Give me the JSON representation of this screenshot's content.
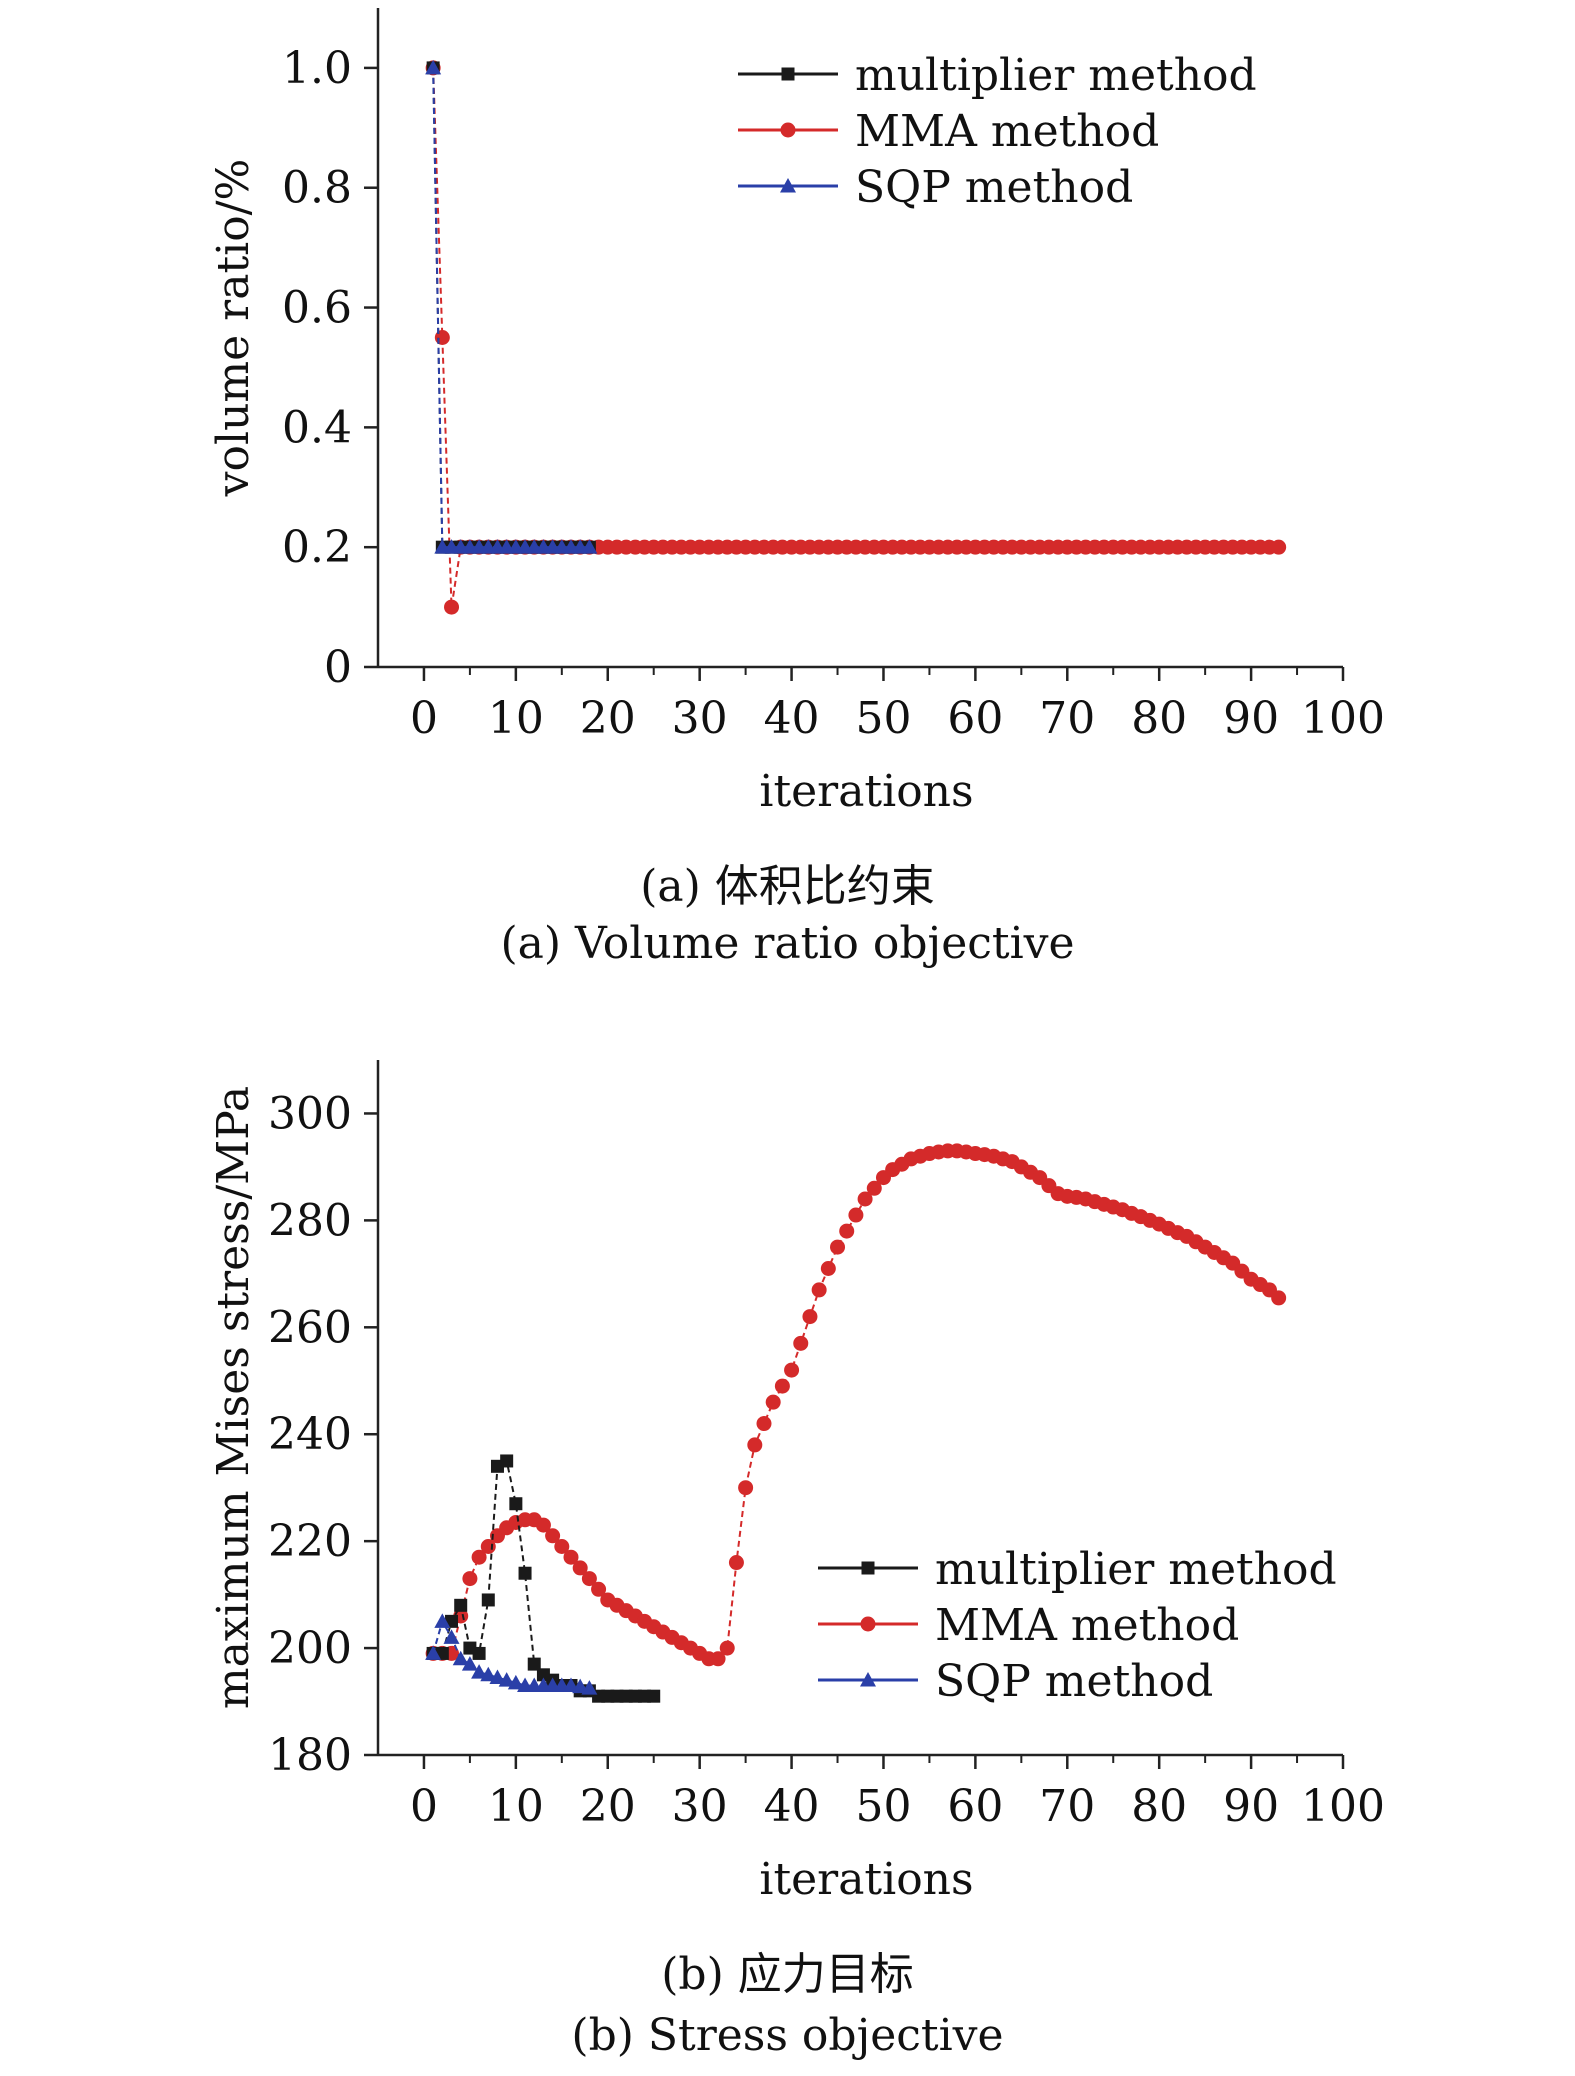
{
  "colors": {
    "multiplier": "#1a1a1a",
    "mma": "#d42a2a",
    "sqp": "#2a3fa8",
    "axis": "#222222"
  },
  "chart_data": [
    {
      "type": "line",
      "caption_cn": "(a) 体积比约束",
      "caption_en": "(a) Volume ratio objective",
      "xlabel": "iterations",
      "ylabel": "volume ratio/%",
      "xlim": [
        -5,
        100
      ],
      "ylim": [
        0,
        1.1
      ],
      "xticks": [
        0,
        10,
        20,
        30,
        40,
        50,
        60,
        70,
        80,
        90,
        100
      ],
      "yticks": [
        0,
        0.2,
        0.4,
        0.6,
        0.8,
        1.0
      ],
      "ytick_labels": [
        "0",
        "0.2",
        "0.4",
        "0.6",
        "0.8",
        "1.0"
      ],
      "legend_position": "top-right",
      "series": [
        {
          "name": "multiplier method",
          "marker": "square",
          "color": "#1a1a1a",
          "x": [
            1,
            2,
            3,
            4,
            5,
            6,
            7,
            8,
            9,
            10,
            11,
            12,
            13,
            14,
            15,
            16,
            17,
            18
          ],
          "y": [
            1.0,
            0.2,
            0.2,
            0.2,
            0.2,
            0.2,
            0.2,
            0.2,
            0.2,
            0.2,
            0.2,
            0.2,
            0.2,
            0.2,
            0.2,
            0.2,
            0.2,
            0.2
          ]
        },
        {
          "name": "MMA method",
          "marker": "circle",
          "color": "#d42a2a",
          "x": [
            1,
            2,
            3,
            4,
            5,
            6,
            7,
            8,
            9,
            10,
            11,
            12,
            13,
            14,
            15,
            16,
            17,
            18,
            19,
            20,
            21,
            22,
            23,
            24,
            25,
            26,
            27,
            28,
            29,
            30,
            31,
            32,
            33,
            34,
            35,
            36,
            37,
            38,
            39,
            40,
            41,
            42,
            43,
            44,
            45,
            46,
            47,
            48,
            49,
            50,
            51,
            52,
            53,
            54,
            55,
            56,
            57,
            58,
            59,
            60,
            61,
            62,
            63,
            64,
            65,
            66,
            67,
            68,
            69,
            70,
            71,
            72,
            73,
            74,
            75,
            76,
            77,
            78,
            79,
            80,
            81,
            82,
            83,
            84,
            85,
            86,
            87,
            88,
            89,
            90,
            91,
            92,
            93
          ],
          "y": [
            1.0,
            0.55,
            0.1,
            0.2,
            0.2,
            0.2,
            0.2,
            0.2,
            0.2,
            0.2,
            0.2,
            0.2,
            0.2,
            0.2,
            0.2,
            0.2,
            0.2,
            0.2,
            0.2,
            0.2,
            0.2,
            0.2,
            0.2,
            0.2,
            0.2,
            0.2,
            0.2,
            0.2,
            0.2,
            0.2,
            0.2,
            0.2,
            0.2,
            0.2,
            0.2,
            0.2,
            0.2,
            0.2,
            0.2,
            0.2,
            0.2,
            0.2,
            0.2,
            0.2,
            0.2,
            0.2,
            0.2,
            0.2,
            0.2,
            0.2,
            0.2,
            0.2,
            0.2,
            0.2,
            0.2,
            0.2,
            0.2,
            0.2,
            0.2,
            0.2,
            0.2,
            0.2,
            0.2,
            0.2,
            0.2,
            0.2,
            0.2,
            0.2,
            0.2,
            0.2,
            0.2,
            0.2,
            0.2,
            0.2,
            0.2,
            0.2,
            0.2,
            0.2,
            0.2,
            0.2,
            0.2,
            0.2,
            0.2,
            0.2,
            0.2,
            0.2,
            0.2,
            0.2,
            0.2,
            0.2,
            0.2,
            0.2,
            0.2
          ]
        },
        {
          "name": "SQP method",
          "marker": "triangle",
          "color": "#2a3fa8",
          "x": [
            1,
            2,
            3,
            4,
            5,
            6,
            7,
            8,
            9,
            10,
            11,
            12,
            13,
            14,
            15,
            16,
            17,
            18
          ],
          "y": [
            1.0,
            0.2,
            0.2,
            0.2,
            0.2,
            0.2,
            0.2,
            0.2,
            0.2,
            0.2,
            0.2,
            0.2,
            0.2,
            0.2,
            0.2,
            0.2,
            0.2,
            0.2
          ]
        }
      ]
    },
    {
      "type": "line",
      "caption_cn": "(b) 应力目标",
      "caption_en": "(b) Stress objective",
      "xlabel": "iterations",
      "ylabel": "maximum Mises stress/MPa",
      "xlim": [
        -5,
        100
      ],
      "ylim": [
        180,
        310
      ],
      "xticks": [
        0,
        10,
        20,
        30,
        40,
        50,
        60,
        70,
        80,
        90,
        100
      ],
      "yticks": [
        180,
        200,
        220,
        240,
        260,
        280,
        300
      ],
      "ytick_labels": [
        "180",
        "200",
        "220",
        "240",
        "260",
        "280",
        "300"
      ],
      "legend_position": "lower-right",
      "series": [
        {
          "name": "multiplier method",
          "marker": "square",
          "color": "#1a1a1a",
          "x": [
            1,
            2,
            3,
            4,
            5,
            6,
            7,
            8,
            9,
            10,
            11,
            12,
            13,
            14,
            15,
            16,
            17,
            18,
            19,
            20,
            21,
            22,
            23,
            24,
            25
          ],
          "y": [
            199,
            199,
            205,
            208,
            200,
            199,
            209,
            234,
            235,
            227,
            214,
            197,
            195,
            194,
            193,
            193,
            192,
            192,
            191,
            191,
            191,
            191,
            191,
            191,
            191
          ]
        },
        {
          "name": "MMA method",
          "marker": "circle",
          "color": "#d42a2a",
          "x": [
            1,
            2,
            3,
            4,
            5,
            6,
            7,
            8,
            9,
            10,
            11,
            12,
            13,
            14,
            15,
            16,
            17,
            18,
            19,
            20,
            21,
            22,
            23,
            24,
            25,
            26,
            27,
            28,
            29,
            30,
            31,
            32,
            33,
            34,
            35,
            36,
            37,
            38,
            39,
            40,
            41,
            42,
            43,
            44,
            45,
            46,
            47,
            48,
            49,
            50,
            51,
            52,
            53,
            54,
            55,
            56,
            57,
            58,
            59,
            60,
            61,
            62,
            63,
            64,
            65,
            66,
            67,
            68,
            69,
            70,
            71,
            72,
            73,
            74,
            75,
            76,
            77,
            78,
            79,
            80,
            81,
            82,
            83,
            84,
            85,
            86,
            87,
            88,
            89,
            90,
            91,
            92,
            93
          ],
          "y": [
            199,
            199,
            199,
            206,
            213,
            217,
            219,
            221,
            222.5,
            223.5,
            224,
            224,
            223,
            221,
            219,
            217,
            215,
            213,
            211,
            209,
            208,
            207,
            206,
            205,
            204,
            203,
            202,
            201,
            200,
            199,
            198,
            198,
            200,
            216,
            230,
            238,
            242,
            246,
            249,
            252,
            257,
            262,
            267,
            271,
            275,
            278,
            281,
            284,
            286,
            288,
            289.5,
            290.5,
            291.5,
            292,
            292.5,
            292.8,
            293,
            293,
            292.8,
            292.5,
            292.3,
            292,
            291.5,
            291,
            290,
            289,
            288,
            286.5,
            285,
            284.5,
            284.3,
            284,
            283.5,
            283,
            282.5,
            282,
            281.3,
            280.7,
            280,
            279.3,
            278.5,
            277.7,
            277,
            276,
            275,
            274,
            273,
            272,
            270.5,
            269,
            268,
            267,
            265.5
          ]
        },
        {
          "name": "SQP method",
          "marker": "triangle",
          "color": "#2a3fa8",
          "x": [
            1,
            2,
            3,
            4,
            5,
            6,
            7,
            8,
            9,
            10,
            11,
            12,
            13,
            14,
            15,
            16,
            17,
            18
          ],
          "y": [
            199,
            205,
            202,
            198,
            197,
            195.5,
            195,
            194.5,
            194,
            193.5,
            193,
            193,
            193,
            193,
            193,
            193,
            192.8,
            192.5
          ]
        }
      ]
    }
  ]
}
